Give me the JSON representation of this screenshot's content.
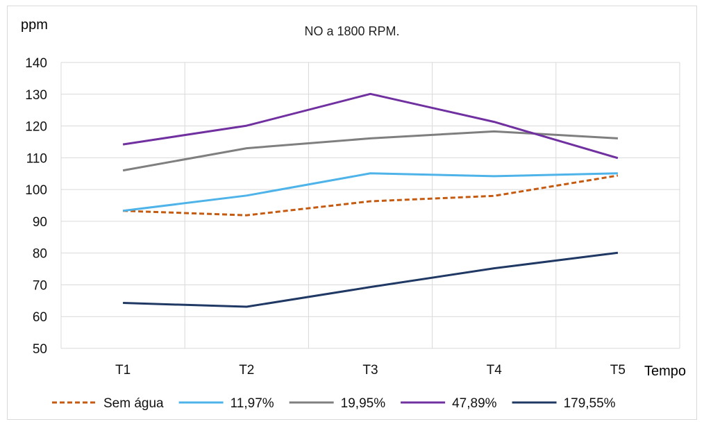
{
  "chart_data": {
    "type": "line",
    "title": "NO a 1800 RPM.",
    "ylabel": "ppm",
    "xlabel": "Tempo",
    "categories": [
      "T1",
      "T2",
      "T3",
      "T4",
      "T5"
    ],
    "ylim": [
      50,
      140
    ],
    "yticks": [
      50,
      60,
      70,
      80,
      90,
      100,
      110,
      120,
      130,
      140
    ],
    "grid": true,
    "legend_position": "bottom",
    "series": [
      {
        "name": "Sem água",
        "values": [
          93.3,
          91.9,
          96.3,
          98.0,
          104.4
        ],
        "color": "#c55a11",
        "dashed": true
      },
      {
        "name": "11,97%",
        "values": [
          93.3,
          98.1,
          105.1,
          104.2,
          105.1
        ],
        "color": "#4eb3e8",
        "dashed": false
      },
      {
        "name": "19,95%",
        "values": [
          106.0,
          113.0,
          116.1,
          118.3,
          116.1
        ],
        "color": "#7f7f7f",
        "dashed": false
      },
      {
        "name": "47,89%",
        "values": [
          114.2,
          120.1,
          130.1,
          121.3,
          109.9
        ],
        "color": "#7030a0",
        "dashed": false
      },
      {
        "name": "179,55%",
        "values": [
          64.3,
          63.1,
          69.3,
          75.2,
          80.1
        ],
        "color": "#1f3864",
        "dashed": false
      }
    ]
  }
}
